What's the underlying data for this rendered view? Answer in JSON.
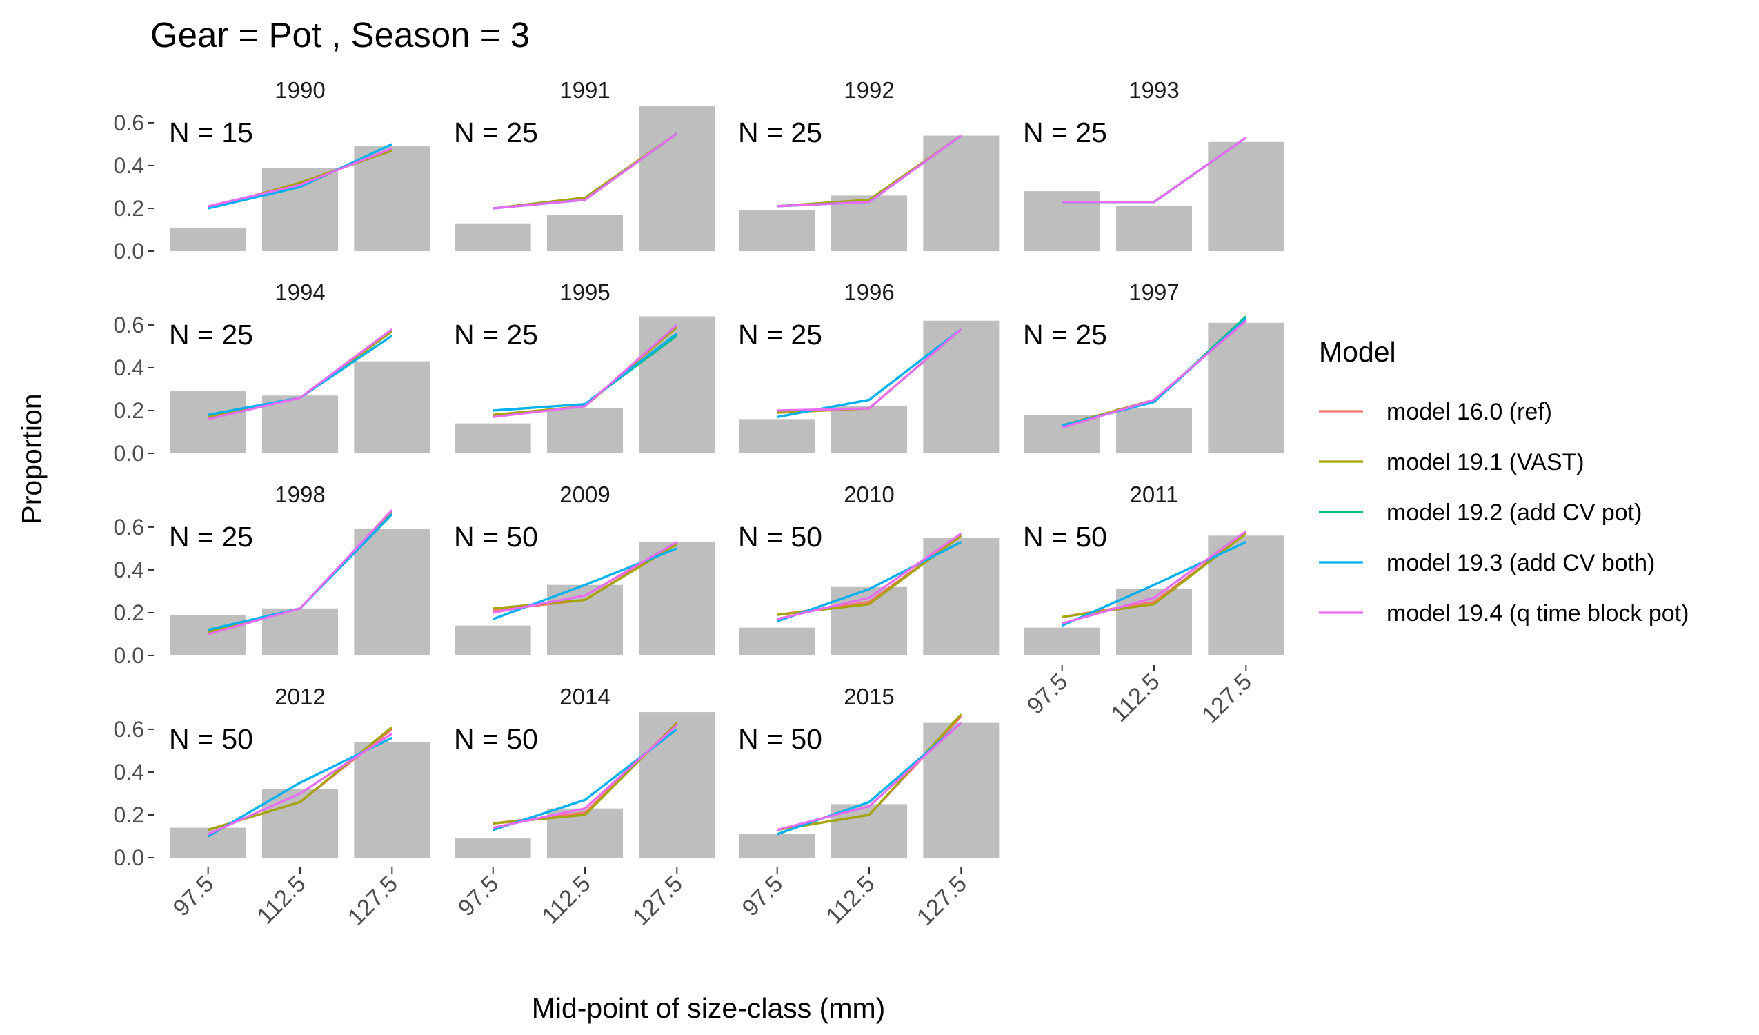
{
  "chart_data": {
    "type": "bar",
    "title": "Gear = Pot , Season = 3",
    "xlabel": "Mid-point of size-class (mm)",
    "ylabel": "Proportion",
    "categories": [
      "97.5",
      "112.5",
      "127.5"
    ],
    "yticks": [
      "0.0",
      "0.2",
      "0.4",
      "0.6"
    ],
    "ylim": [
      0,
      0.69
    ],
    "grid": false,
    "legend": {
      "title": "Model",
      "position": "right",
      "entries": [
        {
          "name": "model 16.0 (ref)",
          "color": "#F8766D"
        },
        {
          "name": "model 19.1 (VAST)",
          "color": "#A3A500"
        },
        {
          "name": "model 19.2 (add CV pot)",
          "color": "#00BF7D"
        },
        {
          "name": "model 19.3 (add CV both)",
          "color": "#00B0F6"
        },
        {
          "name": "model 19.4 (q time block pot)",
          "color": "#E76BF3"
        }
      ]
    },
    "bar_color": "#bebebe",
    "panels": [
      {
        "year": "1990",
        "n_label": "N = 15",
        "observed": [
          0.11,
          0.39,
          0.49
        ],
        "models": [
          [
            0.2,
            0.32,
            0.47
          ],
          [
            0.2,
            0.32,
            0.47
          ],
          [
            0.2,
            0.3,
            0.5
          ],
          [
            0.2,
            0.3,
            0.5
          ],
          [
            0.21,
            0.31,
            0.48
          ]
        ]
      },
      {
        "year": "1991",
        "n_label": "N = 25",
        "observed": [
          0.13,
          0.17,
          0.68
        ],
        "models": [
          [
            0.2,
            0.25,
            0.55
          ],
          [
            0.2,
            0.25,
            0.55
          ],
          [
            0.2,
            0.24,
            0.55
          ],
          [
            0.2,
            0.24,
            0.55
          ],
          [
            0.2,
            0.24,
            0.55
          ]
        ]
      },
      {
        "year": "1992",
        "n_label": "N = 25",
        "observed": [
          0.19,
          0.26,
          0.54
        ],
        "models": [
          [
            0.21,
            0.24,
            0.54
          ],
          [
            0.21,
            0.24,
            0.54
          ],
          [
            0.21,
            0.23,
            0.54
          ],
          [
            0.21,
            0.23,
            0.54
          ],
          [
            0.21,
            0.23,
            0.54
          ]
        ]
      },
      {
        "year": "1993",
        "n_label": "N = 25",
        "observed": [
          0.28,
          0.21,
          0.51
        ],
        "models": [
          [
            0.23,
            0.23,
            0.53
          ],
          [
            0.23,
            0.23,
            0.53
          ],
          [
            0.23,
            0.23,
            0.53
          ],
          [
            0.23,
            0.23,
            0.53
          ],
          [
            0.23,
            0.23,
            0.53
          ]
        ]
      },
      {
        "year": "1994",
        "n_label": "N = 25",
        "observed": [
          0.29,
          0.27,
          0.43
        ],
        "models": [
          [
            0.17,
            0.26,
            0.57
          ],
          [
            0.17,
            0.26,
            0.57
          ],
          [
            0.18,
            0.26,
            0.55
          ],
          [
            0.18,
            0.26,
            0.55
          ],
          [
            0.16,
            0.26,
            0.58
          ]
        ]
      },
      {
        "year": "1995",
        "n_label": "N = 25",
        "observed": [
          0.14,
          0.21,
          0.64
        ],
        "models": [
          [
            0.18,
            0.22,
            0.59
          ],
          [
            0.18,
            0.22,
            0.59
          ],
          [
            0.2,
            0.23,
            0.55
          ],
          [
            0.2,
            0.23,
            0.56
          ],
          [
            0.17,
            0.22,
            0.6
          ]
        ]
      },
      {
        "year": "1996",
        "n_label": "N = 25",
        "observed": [
          0.16,
          0.22,
          0.62
        ],
        "models": [
          [
            0.19,
            0.21,
            0.58
          ],
          [
            0.19,
            0.21,
            0.58
          ],
          [
            0.17,
            0.25,
            0.58
          ],
          [
            0.17,
            0.25,
            0.58
          ],
          [
            0.2,
            0.21,
            0.58
          ]
        ]
      },
      {
        "year": "1997",
        "n_label": "N = 25",
        "observed": [
          0.18,
          0.21,
          0.61
        ],
        "models": [
          [
            0.13,
            0.25,
            0.62
          ],
          [
            0.13,
            0.25,
            0.62
          ],
          [
            0.13,
            0.24,
            0.64
          ],
          [
            0.13,
            0.24,
            0.63
          ],
          [
            0.12,
            0.25,
            0.62
          ]
        ]
      },
      {
        "year": "1998",
        "n_label": "N = 25",
        "observed": [
          0.19,
          0.22,
          0.59
        ],
        "models": [
          [
            0.11,
            0.22,
            0.67
          ],
          [
            0.11,
            0.22,
            0.67
          ],
          [
            0.12,
            0.22,
            0.66
          ],
          [
            0.12,
            0.22,
            0.66
          ],
          [
            0.1,
            0.22,
            0.68
          ]
        ]
      },
      {
        "year": "2009",
        "n_label": "N = 50",
        "observed": [
          0.14,
          0.33,
          0.53
        ],
        "models": [
          [
            0.21,
            0.26,
            0.53
          ],
          [
            0.22,
            0.26,
            0.52
          ],
          [
            0.17,
            0.33,
            0.5
          ],
          [
            0.17,
            0.33,
            0.5
          ],
          [
            0.2,
            0.28,
            0.53
          ]
        ]
      },
      {
        "year": "2010",
        "n_label": "N = 50",
        "observed": [
          0.13,
          0.32,
          0.55
        ],
        "models": [
          [
            0.19,
            0.25,
            0.56
          ],
          [
            0.19,
            0.24,
            0.56
          ],
          [
            0.16,
            0.31,
            0.53
          ],
          [
            0.16,
            0.31,
            0.53
          ],
          [
            0.17,
            0.27,
            0.57
          ]
        ]
      },
      {
        "year": "2011",
        "n_label": "N = 50",
        "observed": [
          0.13,
          0.31,
          0.56
        ],
        "models": [
          [
            0.18,
            0.25,
            0.57
          ],
          [
            0.18,
            0.24,
            0.57
          ],
          [
            0.14,
            0.33,
            0.53
          ],
          [
            0.14,
            0.33,
            0.53
          ],
          [
            0.15,
            0.27,
            0.58
          ]
        ]
      },
      {
        "year": "2012",
        "n_label": "N = 50",
        "observed": [
          0.14,
          0.32,
          0.54
        ],
        "models": [
          [
            0.13,
            0.26,
            0.6
          ],
          [
            0.13,
            0.26,
            0.61
          ],
          [
            0.1,
            0.35,
            0.56
          ],
          [
            0.1,
            0.35,
            0.56
          ],
          [
            0.11,
            0.3,
            0.58
          ]
        ]
      },
      {
        "year": "2014",
        "n_label": "N = 50",
        "observed": [
          0.09,
          0.23,
          0.68
        ],
        "models": [
          [
            0.16,
            0.21,
            0.63
          ],
          [
            0.16,
            0.2,
            0.63
          ],
          [
            0.13,
            0.27,
            0.6
          ],
          [
            0.13,
            0.27,
            0.6
          ],
          [
            0.14,
            0.23,
            0.62
          ]
        ]
      },
      {
        "year": "2015",
        "n_label": "N = 50",
        "observed": [
          0.11,
          0.25,
          0.63
        ],
        "models": [
          [
            0.13,
            0.2,
            0.66
          ],
          [
            0.13,
            0.2,
            0.67
          ],
          [
            0.11,
            0.26,
            0.63
          ],
          [
            0.11,
            0.26,
            0.63
          ],
          [
            0.13,
            0.24,
            0.63
          ]
        ]
      }
    ]
  }
}
